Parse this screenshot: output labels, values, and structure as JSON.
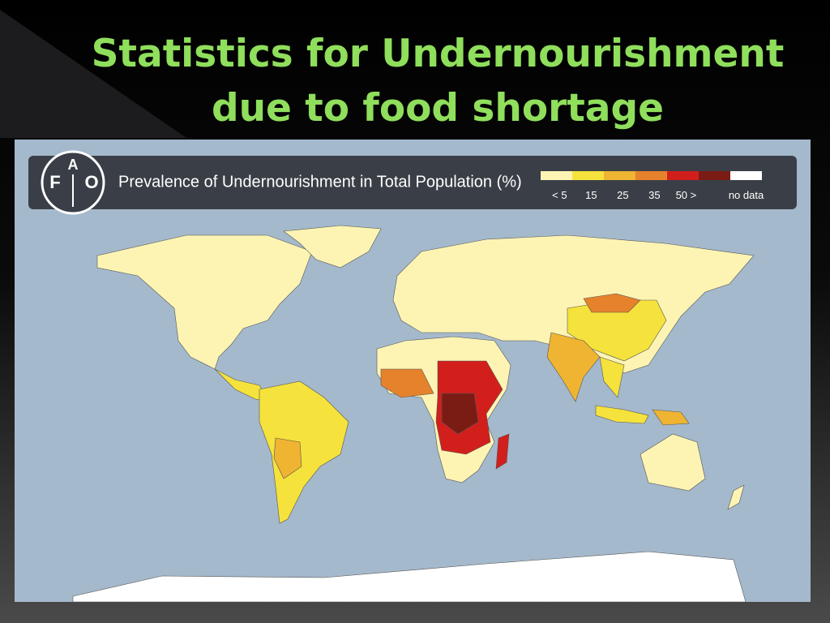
{
  "slide": {
    "title_lines": [
      "Statistics for Undernourishment",
      "due to food shortage"
    ]
  },
  "map": {
    "logo": {
      "letters": [
        "F",
        "A",
        "O"
      ]
    },
    "title": "Prevalence of Undernourishment in Total Population (%)",
    "legend": [
      {
        "label": "< 5",
        "color": "#fdf4b4"
      },
      {
        "label": "15",
        "color": "#f5e23c"
      },
      {
        "label": "25",
        "color": "#efb432"
      },
      {
        "label": "35",
        "color": "#e6822c"
      },
      {
        "label": "50 >",
        "color": "#d21f1c"
      },
      {
        "label": null,
        "color": "#7a1c14"
      },
      {
        "label": "no data",
        "color": "#ffffff"
      }
    ]
  }
}
